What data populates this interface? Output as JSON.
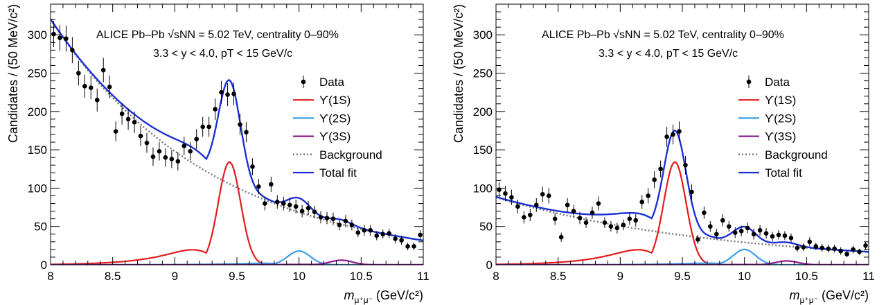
{
  "chart_data": [
    {
      "type": "line",
      "panel": "left",
      "xlim": [
        8,
        11
      ],
      "ylim": [
        0,
        340
      ],
      "x_ticks": [
        8,
        8.5,
        9,
        9.5,
        10,
        10.5,
        11
      ],
      "x_tick_labels": [
        "8",
        "8.5",
        "9",
        "9.5",
        "10",
        "10.5",
        "11"
      ],
      "y_ticks": [
        0,
        50,
        100,
        150,
        200,
        250,
        300
      ],
      "y_tick_labels": [
        "0",
        "50",
        "100",
        "150",
        "200",
        "250",
        "300"
      ],
      "ylabel": "Candidates / (50 MeV/c²)",
      "xlabel_main": "m",
      "xlabel_sub": "μ⁺μ⁻",
      "xlabel_unit": " (GeV/c²)",
      "annotation_line1": "ALICE Pb–Pb √sNN = 5.02 TeV, centrality 0–90%",
      "annotation_line2": "3.3 < y < 4.0, pT < 15 GeV/c",
      "grid": false,
      "legend_position": "right",
      "legend": [
        {
          "label": "Data",
          "kind": "marker",
          "color": "#000000"
        },
        {
          "label": "ϒ(1S)",
          "kind": "line",
          "color": "#e41a1c"
        },
        {
          "label": "ϒ(2S)",
          "kind": "line",
          "color": "#3b9ee8"
        },
        {
          "label": "ϒ(3S)",
          "kind": "line",
          "color": "#8b1a8b"
        },
        {
          "label": "Background",
          "kind": "dotted",
          "color": "#777777"
        },
        {
          "label": "Total fit",
          "kind": "line",
          "color": "#1a2fd6"
        }
      ],
      "series": [
        {
          "name": "Data",
          "kind": "points",
          "color": "#000000",
          "x": [
            8.025,
            8.075,
            8.125,
            8.175,
            8.225,
            8.275,
            8.325,
            8.375,
            8.425,
            8.475,
            8.525,
            8.575,
            8.625,
            8.675,
            8.725,
            8.775,
            8.825,
            8.875,
            8.925,
            8.975,
            9.025,
            9.075,
            9.125,
            9.175,
            9.225,
            9.275,
            9.325,
            9.375,
            9.425,
            9.475,
            9.525,
            9.575,
            9.625,
            9.675,
            9.725,
            9.775,
            9.825,
            9.875,
            9.925,
            9.975,
            10.025,
            10.075,
            10.125,
            10.175,
            10.225,
            10.275,
            10.325,
            10.375,
            10.425,
            10.475,
            10.525,
            10.575,
            10.625,
            10.675,
            10.725,
            10.775,
            10.825,
            10.875,
            10.925,
            10.975
          ],
          "y": [
            301,
            296,
            295,
            280,
            250,
            233,
            231,
            215,
            254,
            232,
            174,
            197,
            190,
            186,
            168,
            159,
            141,
            148,
            140,
            138,
            135,
            155,
            148,
            164,
            180,
            180,
            203,
            225,
            222,
            223,
            183,
            173,
            128,
            102,
            80,
            105,
            82,
            80,
            78,
            76,
            70,
            74,
            69,
            62,
            61,
            60,
            52,
            57,
            52,
            42,
            45,
            45,
            38,
            40,
            41,
            34,
            32,
            24,
            24,
            39
          ],
          "yerr": [
            17,
            17,
            17,
            17,
            16,
            15,
            15,
            15,
            16,
            15,
            13,
            14,
            14,
            14,
            13,
            13,
            12,
            12,
            12,
            12,
            12,
            12,
            12,
            13,
            13,
            13,
            14,
            15,
            15,
            15,
            14,
            13,
            11,
            10,
            9,
            10,
            9,
            9,
            9,
            9,
            8,
            9,
            8,
            8,
            8,
            8,
            7,
            8,
            7,
            6,
            7,
            7,
            6,
            6,
            6,
            6,
            6,
            5,
            5,
            6
          ]
        },
        {
          "name": "ϒ(1S)",
          "kind": "curve",
          "color": "#e41a1c",
          "mu": 9.44,
          "sigma": 0.09,
          "amp": 134,
          "tail": 0.55,
          "mask": 0
        },
        {
          "name": "ϒ(2S)",
          "kind": "curve",
          "color": "#3b9ee8",
          "mu": 10.0,
          "sigma": 0.09,
          "amp": 18,
          "tail": 0.4,
          "mask": 1
        },
        {
          "name": "ϒ(3S)",
          "kind": "curve",
          "color": "#8b1a8b",
          "mu": 10.34,
          "sigma": 0.09,
          "amp": 6,
          "tail": 0.3,
          "mask": 2
        },
        {
          "name": "Background",
          "kind": "curve",
          "color": "#777777",
          "a": 320,
          "b": 0.77,
          "c": 1.0,
          "dotted": true
        },
        {
          "name": "Total fit",
          "kind": "curve",
          "color": "#1a2fd6"
        }
      ]
    },
    {
      "type": "line",
      "panel": "right",
      "xlim": [
        8,
        11
      ],
      "ylim": [
        0,
        340
      ],
      "x_ticks": [
        8,
        8.5,
        9,
        9.5,
        10,
        10.5,
        11
      ],
      "x_tick_labels": [
        "8",
        "8.5",
        "9",
        "9.5",
        "10",
        "10.5",
        "11"
      ],
      "y_ticks": [
        0,
        50,
        100,
        150,
        200,
        250,
        300
      ],
      "y_tick_labels": [
        "0",
        "50",
        "100",
        "150",
        "200",
        "250",
        "300"
      ],
      "ylabel": "Candidates / (50 MeV/c²)",
      "xlabel_main": "m",
      "xlabel_sub": "μ⁺μ⁻",
      "xlabel_unit": " (GeV/c²)",
      "annotation_line1": "ALICE Pb–Pb √sNN = 5.02 TeV, centrality 0–90%",
      "annotation_line2": "3.3 < y < 4.0, pT < 15 GeV/c",
      "grid": false,
      "legend_position": "right",
      "legend": [
        {
          "label": "Data",
          "kind": "marker",
          "color": "#000000"
        },
        {
          "label": "ϒ(1S)",
          "kind": "line",
          "color": "#e41a1c"
        },
        {
          "label": "ϒ(2S)",
          "kind": "line",
          "color": "#3b9ee8"
        },
        {
          "label": "ϒ(3S)",
          "kind": "line",
          "color": "#8b1a8b"
        },
        {
          "label": "Background",
          "kind": "dotted",
          "color": "#777777"
        },
        {
          "label": "Total fit",
          "kind": "line",
          "color": "#1a2fd6"
        }
      ],
      "series": [
        {
          "name": "Data",
          "kind": "points",
          "color": "#000000",
          "x": [
            8.025,
            8.075,
            8.125,
            8.175,
            8.225,
            8.275,
            8.325,
            8.375,
            8.425,
            8.475,
            8.525,
            8.575,
            8.625,
            8.675,
            8.725,
            8.775,
            8.825,
            8.875,
            8.925,
            8.975,
            9.025,
            9.075,
            9.125,
            9.175,
            9.225,
            9.275,
            9.325,
            9.375,
            9.425,
            9.475,
            9.525,
            9.575,
            9.625,
            9.675,
            9.725,
            9.775,
            9.825,
            9.875,
            9.925,
            9.975,
            10.025,
            10.075,
            10.125,
            10.175,
            10.225,
            10.275,
            10.325,
            10.375,
            10.425,
            10.475,
            10.525,
            10.575,
            10.625,
            10.675,
            10.725,
            10.775,
            10.825,
            10.875,
            10.925,
            10.975
          ],
          "y": [
            98,
            93,
            88,
            76,
            62,
            65,
            78,
            92,
            90,
            60,
            36,
            78,
            70,
            61,
            55,
            68,
            80,
            55,
            50,
            48,
            52,
            60,
            58,
            82,
            90,
            111,
            125,
            167,
            170,
            174,
            130,
            95,
            33,
            68,
            50,
            40,
            58,
            50,
            42,
            44,
            48,
            40,
            45,
            41,
            37,
            39,
            38,
            35,
            22,
            23,
            30,
            24,
            22,
            21,
            21,
            18,
            14,
            20,
            17,
            25
          ],
          "yerr": [
            10,
            10,
            10,
            9,
            8,
            8,
            9,
            10,
            10,
            8,
            6,
            9,
            8,
            8,
            7,
            8,
            9,
            7,
            7,
            7,
            7,
            8,
            8,
            9,
            10,
            11,
            11,
            13,
            13,
            13,
            12,
            10,
            6,
            8,
            7,
            7,
            8,
            7,
            7,
            7,
            7,
            7,
            7,
            7,
            6,
            6,
            6,
            6,
            5,
            5,
            6,
            5,
            5,
            5,
            5,
            5,
            4,
            5,
            4,
            5
          ]
        },
        {
          "name": "ϒ(1S)",
          "kind": "curve",
          "color": "#e41a1c",
          "mu": 9.44,
          "sigma": 0.09,
          "amp": 134,
          "tail": 0.55,
          "mask": 0
        },
        {
          "name": "ϒ(2S)",
          "kind": "curve",
          "color": "#3b9ee8",
          "mu": 10.0,
          "sigma": 0.09,
          "amp": 20,
          "tail": 0.4,
          "mask": 1
        },
        {
          "name": "ϒ(3S)",
          "kind": "curve",
          "color": "#8b1a8b",
          "mu": 10.34,
          "sigma": 0.09,
          "amp": 5,
          "tail": 0.3,
          "mask": 2
        },
        {
          "name": "Background",
          "kind": "curve",
          "color": "#777777",
          "a": 88,
          "b": 0.55,
          "c": 1.0,
          "dotted": true
        },
        {
          "name": "Total fit",
          "kind": "curve",
          "color": "#1a2fd6"
        }
      ]
    }
  ]
}
